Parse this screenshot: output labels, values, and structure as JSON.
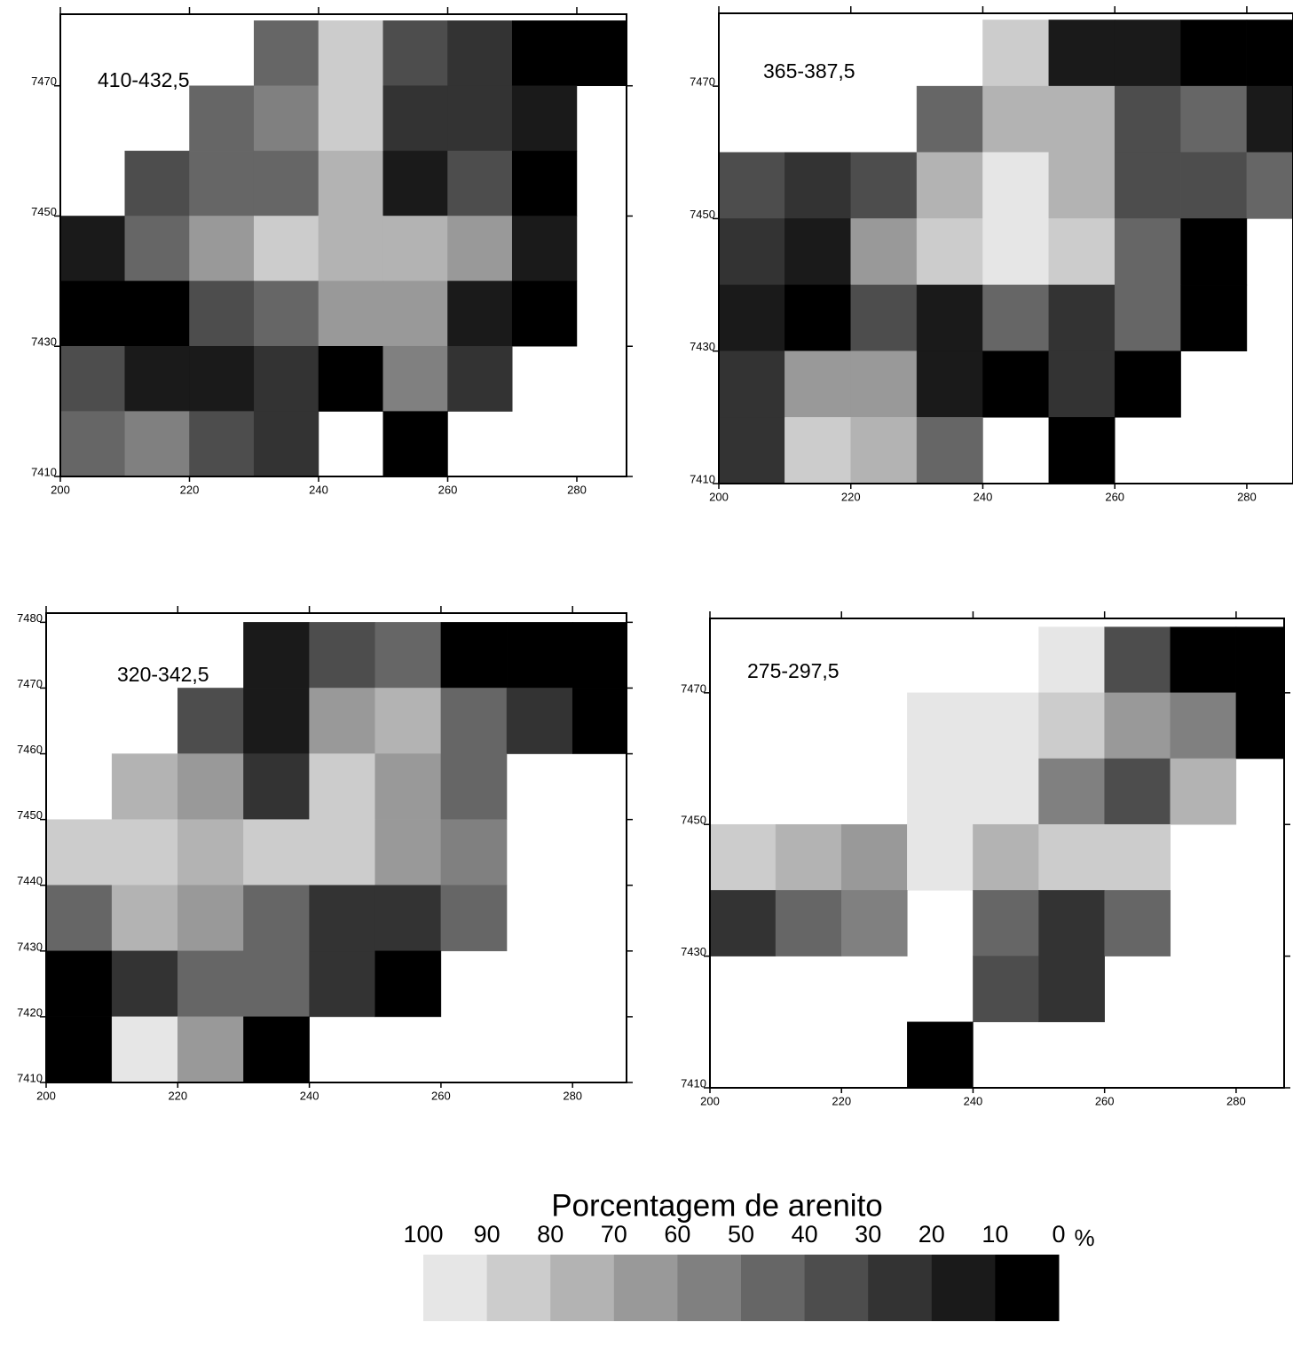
{
  "chart_data": [
    {
      "type": "contour",
      "title": "410-432,5",
      "xlim": [
        200,
        287.7
      ],
      "ylim": [
        7410,
        7481
      ],
      "xticks": [
        200,
        220,
        240,
        260,
        280
      ],
      "yticks": [
        7410,
        7430,
        7450,
        7470
      ],
      "x": [
        205,
        215,
        225,
        235,
        245,
        255,
        265,
        275,
        285
      ],
      "y": [
        7475,
        7465,
        7455,
        7445,
        7435,
        7425,
        7415
      ],
      "z": [
        [
          null,
          null,
          null,
          40,
          85,
          30,
          20,
          5,
          0
        ],
        [
          null,
          null,
          40,
          50,
          85,
          20,
          20,
          10,
          null
        ],
        [
          null,
          30,
          40,
          40,
          70,
          10,
          30,
          5,
          null
        ],
        [
          10,
          40,
          60,
          80,
          70,
          70,
          60,
          10,
          null
        ],
        [
          5,
          5,
          30,
          40,
          60,
          60,
          10,
          5,
          null
        ],
        [
          30,
          10,
          10,
          20,
          5,
          50,
          20,
          null,
          null
        ],
        [
          40,
          50,
          30,
          20,
          null,
          0,
          null,
          null,
          null
        ]
      ]
    },
    {
      "type": "contour",
      "title": "365-387,5",
      "xlim": [
        200,
        287
      ],
      "ylim": [
        7410,
        7481
      ],
      "xticks": [
        200,
        220,
        240,
        260,
        280
      ],
      "yticks": [
        7410,
        7430,
        7450,
        7470
      ],
      "x": [
        205,
        215,
        225,
        235,
        245,
        255,
        265,
        275,
        285
      ],
      "y": [
        7475,
        7465,
        7455,
        7445,
        7435,
        7425,
        7415
      ],
      "z": [
        [
          null,
          null,
          null,
          null,
          80,
          10,
          10,
          0,
          0
        ],
        [
          null,
          null,
          null,
          40,
          70,
          70,
          30,
          40,
          10
        ],
        [
          30,
          20,
          30,
          75,
          90,
          70,
          30,
          30,
          40
        ],
        [
          20,
          10,
          60,
          85,
          90,
          80,
          40,
          5,
          null
        ],
        [
          10,
          5,
          30,
          10,
          40,
          20,
          40,
          0,
          null
        ],
        [
          20,
          60,
          60,
          10,
          5,
          20,
          5,
          null,
          null
        ],
        [
          20,
          80,
          70,
          40,
          null,
          0,
          null,
          null,
          null
        ]
      ]
    },
    {
      "type": "contour",
      "title": "320-342,5",
      "xlim": [
        200,
        288.2
      ],
      "ylim": [
        7410,
        7481.4
      ],
      "xticks": [
        200,
        220,
        240,
        260,
        280
      ],
      "yticks": [
        7410,
        7420,
        7430,
        7440,
        7450,
        7460,
        7470,
        7480
      ],
      "x": [
        205,
        215,
        225,
        235,
        245,
        255,
        265,
        275,
        285
      ],
      "y": [
        7475,
        7465,
        7455,
        7445,
        7435,
        7425,
        7415
      ],
      "z": [
        [
          null,
          null,
          null,
          10,
          30,
          40,
          0,
          0,
          0
        ],
        [
          null,
          null,
          30,
          10,
          60,
          70,
          40,
          20,
          0
        ],
        [
          null,
          70,
          60,
          20,
          80,
          60,
          40,
          null,
          null
        ],
        [
          80,
          80,
          70,
          80,
          80,
          60,
          50,
          null,
          null
        ],
        [
          40,
          70,
          60,
          40,
          20,
          20,
          40,
          null,
          null
        ],
        [
          0,
          20,
          40,
          40,
          20,
          5,
          null,
          null,
          null
        ],
        [
          0,
          90,
          60,
          0,
          null,
          null,
          null,
          null,
          null
        ]
      ]
    },
    {
      "type": "contour",
      "title": "275-297,5",
      "xlim": [
        200,
        287.3
      ],
      "ylim": [
        7410,
        7481.3
      ],
      "xticks": [
        200,
        220,
        240,
        260,
        280
      ],
      "yticks": [
        7410,
        7430,
        7450,
        7470
      ],
      "x": [
        205,
        215,
        225,
        235,
        245,
        255,
        265,
        275,
        285
      ],
      "y": [
        7475,
        7465,
        7455,
        7445,
        7435,
        7425,
        7415
      ],
      "z": [
        [
          null,
          null,
          null,
          null,
          null,
          100,
          30,
          0,
          0
        ],
        [
          null,
          null,
          null,
          90,
          90,
          80,
          60,
          50,
          5
        ],
        [
          null,
          null,
          null,
          90,
          90,
          50,
          30,
          70,
          null
        ],
        [
          80,
          70,
          60,
          90,
          70,
          80,
          80,
          null,
          null
        ],
        [
          20,
          40,
          50,
          null,
          40,
          20,
          40,
          null,
          null
        ],
        [
          null,
          null,
          null,
          null,
          30,
          20,
          null,
          null,
          null
        ],
        [
          null,
          null,
          null,
          0,
          null,
          null,
          null,
          null,
          null
        ]
      ]
    }
  ],
  "legend": {
    "title": "Porcentagem de arenito",
    "levels": [
      100,
      90,
      80,
      70,
      60,
      50,
      40,
      30,
      20,
      10,
      0
    ],
    "unit": "%",
    "colors": [
      "#e6e6e6",
      "#cccccc",
      "#b3b3b3",
      "#999999",
      "#808080",
      "#666666",
      "#4d4d4d",
      "#333333",
      "#1a1a1a",
      "#000000"
    ]
  }
}
